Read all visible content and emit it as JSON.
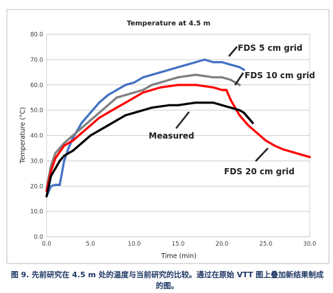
{
  "chart_data": {
    "type": "line",
    "title": "Temperature at 4.5 m",
    "xlabel": "Time (min)",
    "ylabel": "Temperature (°C)",
    "xlim": [
      0,
      30
    ],
    "ylim": [
      0,
      80
    ],
    "x_ticks": [
      "0.0",
      "5.0",
      "10.0",
      "15.0",
      "20.0",
      "25.0",
      "30.0"
    ],
    "y_ticks": [
      "0.0",
      "10.0",
      "20.0",
      "30.0",
      "40.0",
      "50.0",
      "60.0",
      "70.0",
      "80.0"
    ],
    "grid": true,
    "legend": "none",
    "series": [
      {
        "name": "FDS 5 cm grid",
        "color": "#4472c4",
        "x": [
          0,
          0.5,
          1.0,
          1.5,
          2.0,
          2.5,
          3.0,
          4.0,
          5.0,
          6.0,
          7.0,
          8.0,
          9.0,
          10.0,
          11.0,
          12.0,
          13.0,
          14.0,
          15.0,
          16.0,
          17.0,
          18.0,
          19.0,
          20.0,
          21.0,
          21.5,
          22.0,
          22.5
        ],
        "y": [
          16,
          20,
          20.5,
          20.5,
          30,
          35,
          39,
          45,
          49,
          53,
          56,
          58,
          60,
          61,
          63,
          64,
          65,
          66,
          67,
          68,
          69,
          70,
          69,
          69,
          68,
          67.5,
          67,
          66
        ]
      },
      {
        "name": "FDS 10 cm grid",
        "color": "#7f7f7f",
        "x": [
          0,
          0.5,
          1.0,
          2.0,
          3.0,
          4.0,
          5.0,
          6.0,
          7.0,
          8.0,
          9.0,
          10.0,
          11.0,
          12.0,
          13.0,
          14.0,
          15.0,
          16.0,
          17.0,
          18.0,
          19.0,
          20.0,
          21.0,
          21.5,
          22.0
        ],
        "y": [
          19,
          28,
          33,
          37,
          40,
          43,
          46,
          49,
          52,
          55,
          56,
          57,
          58,
          60,
          61,
          62,
          63,
          63.5,
          64,
          63.5,
          63,
          63,
          62,
          61,
          60
        ]
      },
      {
        "name": "FDS 20 cm grid",
        "color": "#ff0000",
        "x": [
          0,
          0.5,
          1.0,
          2.0,
          3.0,
          4.0,
          5.0,
          6.0,
          7.0,
          8.0,
          9.0,
          10.0,
          11.0,
          12.0,
          13.0,
          14.0,
          15.0,
          16.0,
          17.0,
          18.0,
          19.0,
          20.0,
          20.5,
          21.0,
          22.0,
          23.0,
          24.0,
          25.0,
          26.0,
          27.0,
          28.0,
          29.0,
          30.0
        ],
        "y": [
          18,
          26,
          31,
          36,
          38,
          41,
          44,
          47,
          49,
          51,
          53,
          55,
          57,
          58,
          59,
          59.5,
          60,
          60,
          60,
          59.5,
          59,
          58,
          58,
          54,
          48,
          44,
          41,
          38,
          36,
          34.5,
          33.5,
          32.5,
          31.5
        ]
      },
      {
        "name": "Measured",
        "color": "#000000",
        "x": [
          0,
          0.5,
          1.0,
          1.5,
          2.0,
          3.0,
          4.0,
          5.0,
          6.0,
          7.0,
          8.0,
          9.0,
          10.0,
          11.0,
          12.0,
          13.0,
          14.0,
          15.0,
          16.0,
          17.0,
          18.0,
          19.0,
          20.0,
          21.0,
          22.0,
          22.5,
          23.0,
          23.5
        ],
        "y": [
          16,
          24,
          27,
          30,
          32,
          34,
          37,
          40,
          42,
          44,
          46,
          48,
          49,
          50,
          51,
          51.5,
          52,
          52,
          52.5,
          53,
          53,
          53,
          52,
          51,
          50,
          49,
          47,
          45
        ]
      }
    ],
    "annotations": [
      {
        "text": "FDS 5 cm grid"
      },
      {
        "text": "FDS 10 cm grid"
      },
      {
        "text": "Measured"
      },
      {
        "text": "FDS 20 cm grid"
      }
    ]
  },
  "caption": "图 9. 先前研究在 4.5 m 处的温度与当前研究的比较。通过在原始 VTT 图上叠加新结果制成的图。"
}
